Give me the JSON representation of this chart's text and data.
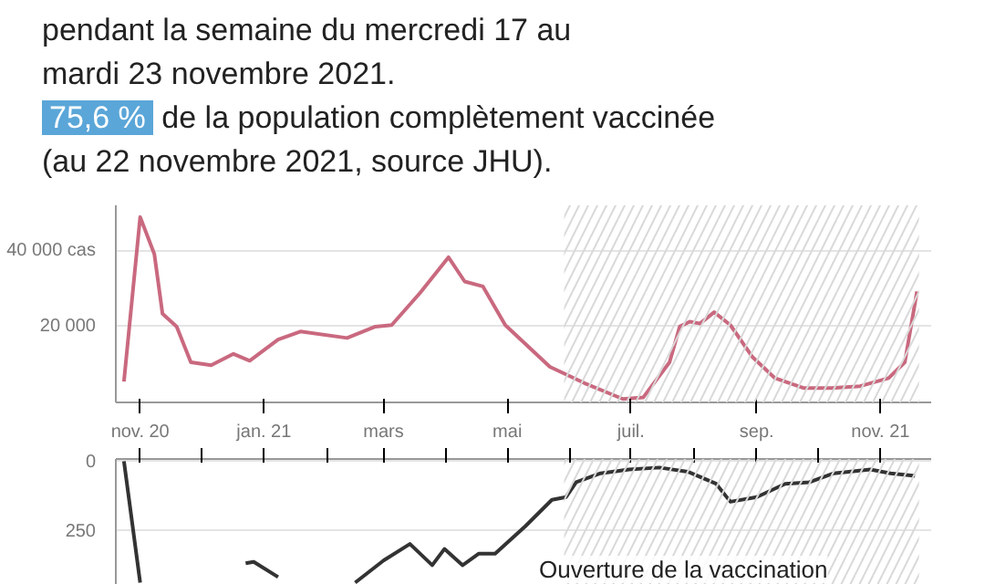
{
  "chart_data": [
    {
      "type": "line",
      "annotations": [
        "pendant la semaine du mercredi 17 au",
        "mardi 23 novembre 2021.",
        "75,6 %",
        "de la population complètement vaccinée",
        "(au 22 novembre 2021, source JHU)."
      ],
      "xlim": [
        "2020-10-20",
        "2021-11-26"
      ],
      "ylim": [
        0,
        52000
      ],
      "xticks": [
        {
          "value": "2020-11-01",
          "label": "nov. 20"
        },
        {
          "value": "2021-01-01",
          "label": "jan. 21"
        },
        {
          "value": "2021-03-01",
          "label": "mars"
        },
        {
          "value": "2021-05-01",
          "label": "mai"
        },
        {
          "value": "2021-07-01",
          "label": "juil."
        },
        {
          "value": "2021-09-01",
          "label": "sep."
        },
        {
          "value": "2021-11-01",
          "label": "nov. 21"
        }
      ],
      "yticks": [
        {
          "value": 20000,
          "label": "20 000"
        },
        {
          "value": 40000,
          "label": "40 000 cas"
        }
      ],
      "grid": "y",
      "bands": [
        {
          "axis": "x",
          "from": "2021-05-29",
          "to": "2021-11-20",
          "color": "#d9d9d9"
        }
      ],
      "series": [
        {
          "color": "#c9697f",
          "x": [
            "2020-10-24",
            "2020-11-01",
            "2020-11-08",
            "2020-11-12",
            "2020-11-19",
            "2020-11-26",
            "2020-12-06",
            "2020-12-17",
            "2020-12-25",
            "2021-01-08",
            "2021-01-19",
            "2021-02-11",
            "2021-02-25",
            "2021-03-05",
            "2021-03-19",
            "2021-04-02",
            "2021-04-10",
            "2021-04-19",
            "2021-04-30",
            "2021-05-22",
            "2021-06-08",
            "2021-06-27",
            "2021-07-07",
            "2021-07-20",
            "2021-07-25",
            "2021-07-30",
            "2021-08-04",
            "2021-08-11",
            "2021-08-19",
            "2021-08-30",
            "2021-09-10",
            "2021-09-24",
            "2021-10-08",
            "2021-10-22",
            "2021-11-05",
            "2021-11-13",
            "2021-11-19"
          ],
          "values": [
            5500,
            48900,
            39100,
            23400,
            20000,
            10600,
            9800,
            12800,
            11000,
            16600,
            18700,
            17000,
            20000,
            20400,
            28900,
            38300,
            31900,
            30600,
            20400,
            9400,
            5100,
            900,
            1300,
            10600,
            20000,
            21300,
            20800,
            23800,
            20400,
            11900,
            6400,
            3800,
            3800,
            4300,
            6400,
            10600,
            29300
          ]
        }
      ]
    },
    {
      "type": "line",
      "annotations": [
        "Ouverture de la vaccination"
      ],
      "xlim": [
        "2020-10-20",
        "2021-11-26"
      ],
      "ylim": [
        -455,
        8
      ],
      "xticks": [
        {
          "value": "2020-11-01",
          "label": null
        },
        {
          "value": "2020-12-01",
          "label": null
        },
        {
          "value": "2021-01-01",
          "label": null
        },
        {
          "value": "2021-02-01",
          "label": null
        },
        {
          "value": "2021-03-01",
          "label": null
        },
        {
          "value": "2021-04-01",
          "label": null
        },
        {
          "value": "2021-05-01",
          "label": null
        },
        {
          "value": "2021-06-01",
          "label": null
        },
        {
          "value": "2021-07-01",
          "label": null
        },
        {
          "value": "2021-08-01",
          "label": null
        },
        {
          "value": "2021-09-01",
          "label": null
        },
        {
          "value": "2021-10-01",
          "label": null
        },
        {
          "value": "2021-11-01",
          "label": null
        }
      ],
      "yticks": [
        {
          "value": 0,
          "label": "0"
        },
        {
          "value": -250,
          "label": "250"
        }
      ],
      "tick_labels": "y",
      "grid": "y",
      "bands": [
        {
          "axis": "x",
          "from": "2021-05-29",
          "to": "2021-11-20",
          "color": "#d9d9d9"
        }
      ],
      "series": [
        {
          "color": "#333333",
          "x": [
            "2020-10-24",
            "2020-11-01",
            "2020-12-01",
            "2020-12-23",
            "2020-12-27",
            "2021-01-08",
            "2021-01-25",
            "2021-02-15",
            "2021-03-01",
            "2021-03-14",
            "2021-03-25",
            "2021-03-31",
            "2021-04-09",
            "2021-04-17",
            "2021-04-25",
            "2021-05-10",
            "2021-05-23",
            "2021-05-30",
            "2021-06-04",
            "2021-06-16",
            "2021-06-30",
            "2021-07-15",
            "2021-07-29",
            "2021-08-12",
            "2021-08-19",
            "2021-09-01",
            "2021-09-15",
            "2021-09-27",
            "2021-10-09",
            "2021-10-27",
            "2021-11-06",
            "2021-11-18"
          ],
          "values": [
            0,
            -440,
            null,
            -370,
            -365,
            -420,
            null,
            -440,
            -360,
            -300,
            -377,
            -318,
            -377,
            -335,
            -335,
            -235,
            -140,
            -130,
            -76,
            -44,
            -30,
            -23,
            -38,
            -82,
            -147,
            -130,
            -82,
            -76,
            -44,
            -30,
            -44,
            -53
          ]
        }
      ]
    }
  ]
}
